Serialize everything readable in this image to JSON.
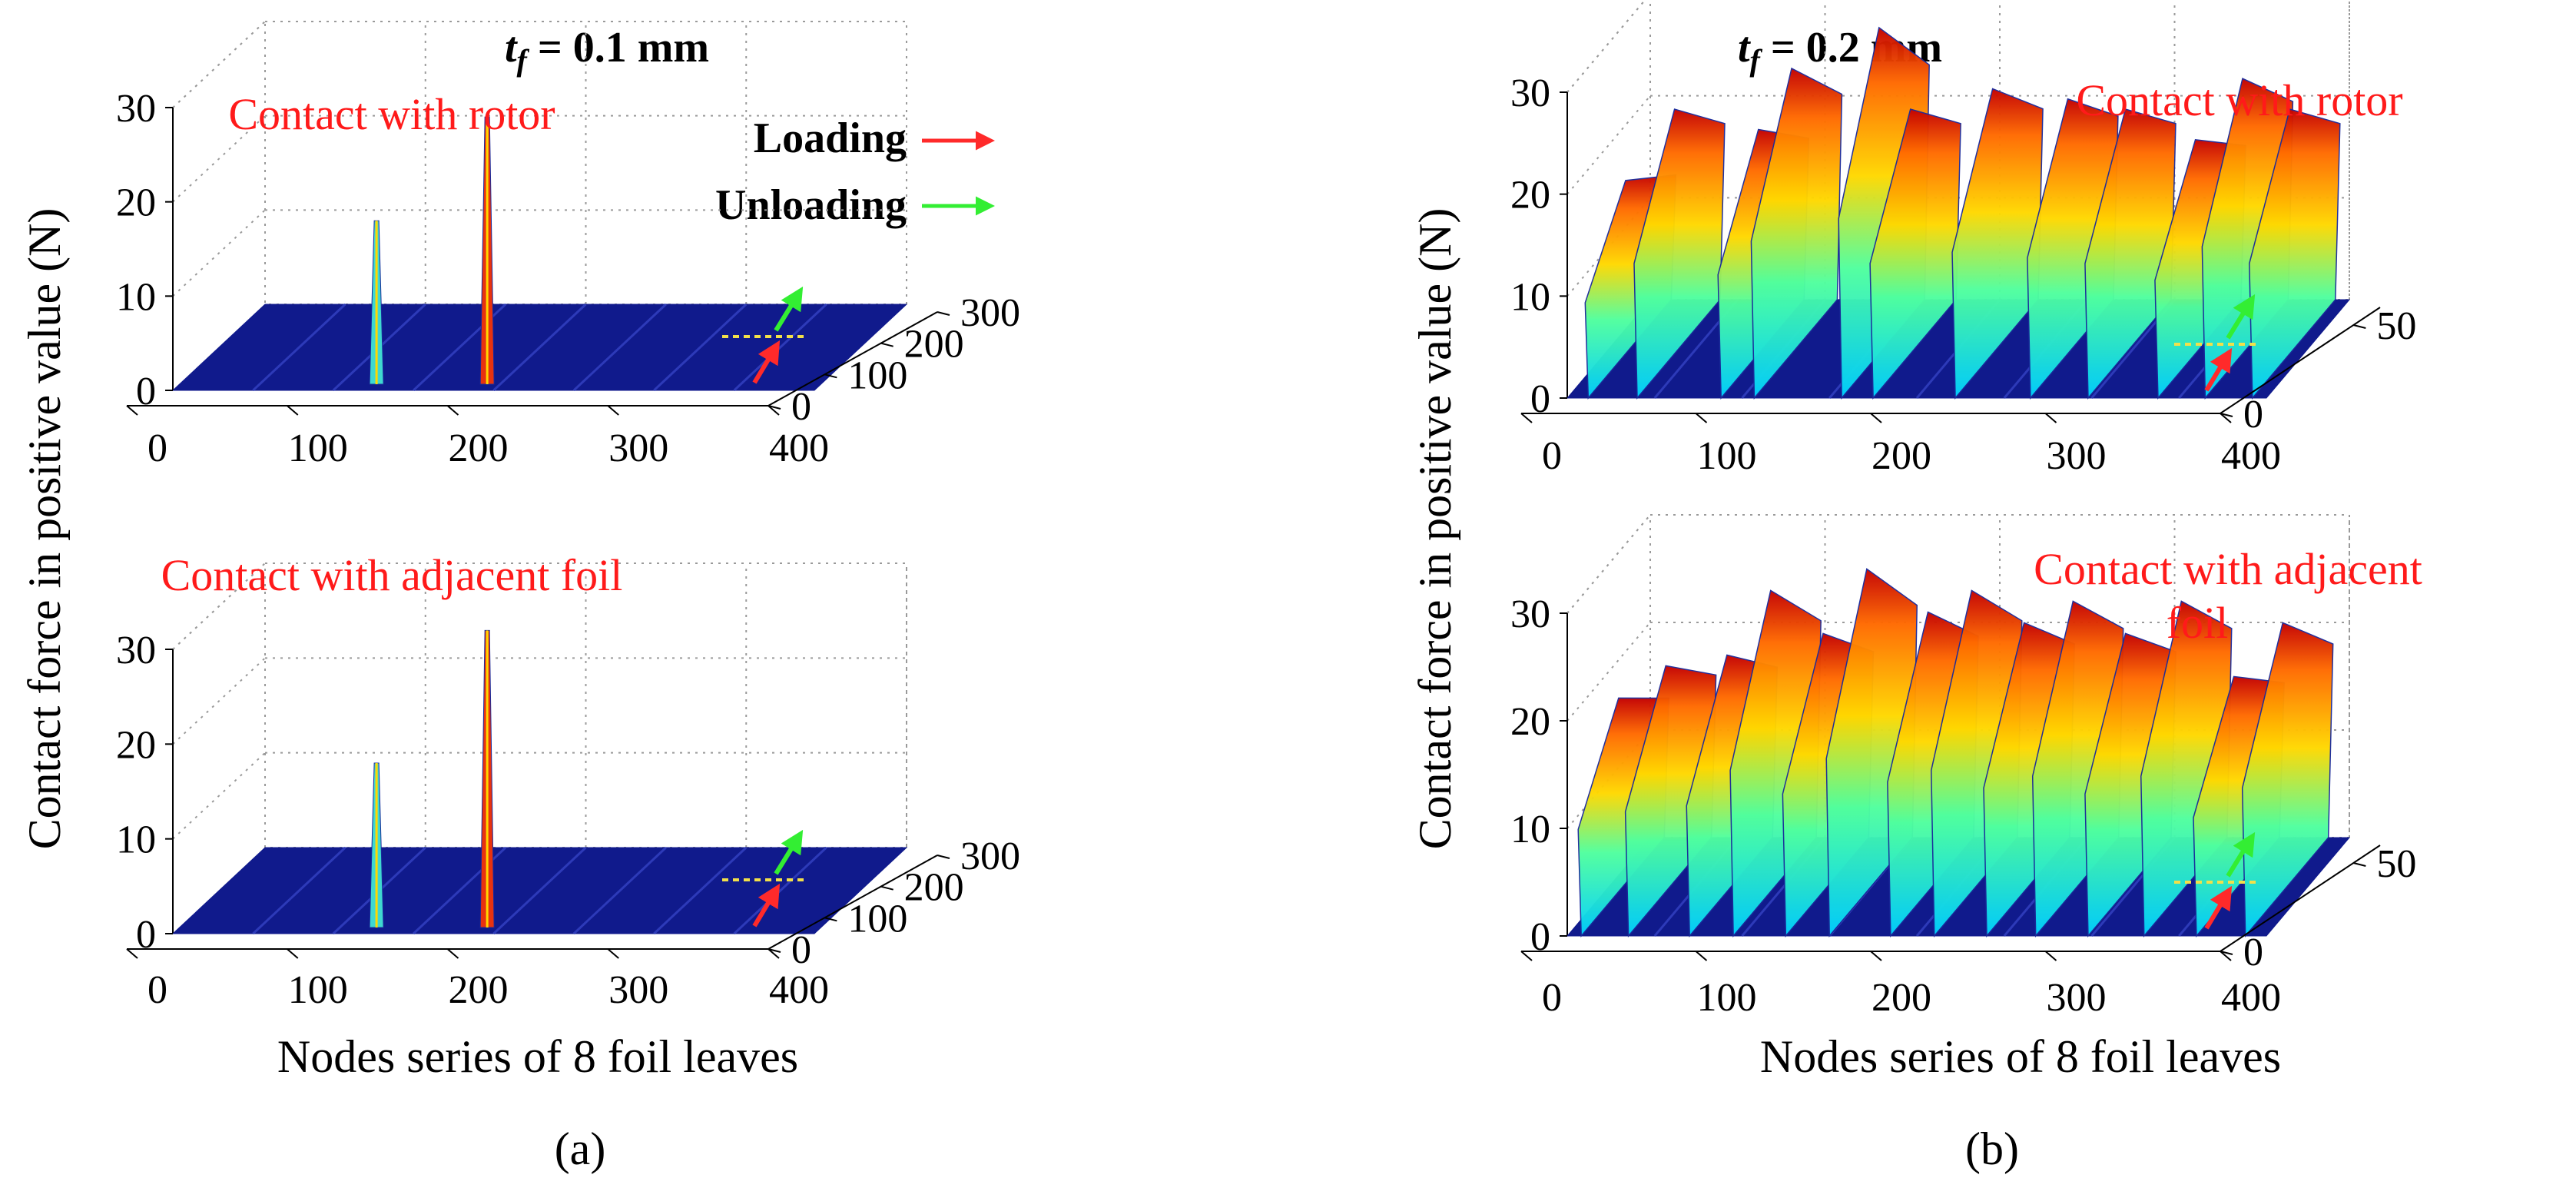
{
  "figure": {
    "ylabel": "Contact force in positive value (N)",
    "xlabel": "Nodes series of 8 foil leaves"
  },
  "legend": {
    "loading": "Loading",
    "unloading": "Unloading",
    "loading_color": "#ff2a2a",
    "unloading_color": "#33ee33"
  },
  "colors": {
    "floor": "#101a8c",
    "annotation": "#ff1a1a",
    "grid": "#9a9a9a",
    "marker_line": "#f2e04a"
  },
  "chart_data": [
    {
      "panel": "a",
      "panel_label": "(a)",
      "title_prefix": "t",
      "title_sub": "f",
      "title_suffix": " = 0.1 mm",
      "subplots": [
        {
          "annotation": "Contact with rotor",
          "type": "surface3d",
          "x_ticks": [
            "0",
            "100",
            "200",
            "300",
            "400"
          ],
          "y_ticks": [
            "0",
            "10",
            "20",
            "30"
          ],
          "depth_ticks": [
            "0",
            "100",
            "200",
            "300"
          ],
          "zlim": [
            0,
            30
          ],
          "peaks": [
            {
              "node": 127,
              "value": 18
            },
            {
              "node": 196,
              "value": 29
            }
          ]
        },
        {
          "annotation": "Contact with adjacent foil",
          "type": "surface3d",
          "x_ticks": [
            "0",
            "100",
            "200",
            "300",
            "400"
          ],
          "y_ticks": [
            "0",
            "10",
            "20",
            "30"
          ],
          "depth_ticks": [
            "0",
            "100",
            "200",
            "300"
          ],
          "zlim": [
            0,
            30
          ],
          "peaks": [
            {
              "node": 127,
              "value": 18
            },
            {
              "node": 196,
              "value": 32
            }
          ]
        }
      ]
    },
    {
      "panel": "b",
      "panel_label": "(b)",
      "title_prefix": "t",
      "title_sub": "f",
      "title_suffix": " = 0.2 mm",
      "subplots": [
        {
          "annotation": "Contact with rotor",
          "type": "surface3d",
          "x_ticks": [
            "0",
            "100",
            "200",
            "300",
            "400"
          ],
          "y_ticks": [
            "0",
            "10",
            "20",
            "30"
          ],
          "depth_ticks": [
            "0",
            "50"
          ],
          "zlim": [
            0,
            30
          ],
          "peaks": [
            {
              "node": 12,
              "value": 17
            },
            {
              "node": 40,
              "value": 24
            },
            {
              "node": 88,
              "value": 22
            },
            {
              "node": 107,
              "value": 28
            },
            {
              "node": 157,
              "value": 32
            },
            {
              "node": 175,
              "value": 24
            },
            {
              "node": 222,
              "value": 26
            },
            {
              "node": 265,
              "value": 25
            },
            {
              "node": 298,
              "value": 24
            },
            {
              "node": 338,
              "value": 21
            },
            {
              "node": 365,
              "value": 27
            },
            {
              "node": 392,
              "value": 24
            }
          ]
        },
        {
          "annotation": "Contact with adjacent foil",
          "type": "surface3d",
          "x_ticks": [
            "0",
            "100",
            "200",
            "300",
            "400"
          ],
          "y_ticks": [
            "0",
            "10",
            "20",
            "30"
          ],
          "depth_ticks": [
            "0",
            "50"
          ],
          "zlim": [
            0,
            30
          ],
          "peaks": [
            {
              "node": 8,
              "value": 18
            },
            {
              "node": 35,
              "value": 21
            },
            {
              "node": 70,
              "value": 22
            },
            {
              "node": 95,
              "value": 28
            },
            {
              "node": 125,
              "value": 24
            },
            {
              "node": 150,
              "value": 30
            },
            {
              "node": 185,
              "value": 26
            },
            {
              "node": 210,
              "value": 28
            },
            {
              "node": 240,
              "value": 25
            },
            {
              "node": 268,
              "value": 27
            },
            {
              "node": 298,
              "value": 24
            },
            {
              "node": 330,
              "value": 27
            },
            {
              "node": 360,
              "value": 20
            },
            {
              "node": 388,
              "value": 25
            }
          ]
        }
      ]
    }
  ]
}
